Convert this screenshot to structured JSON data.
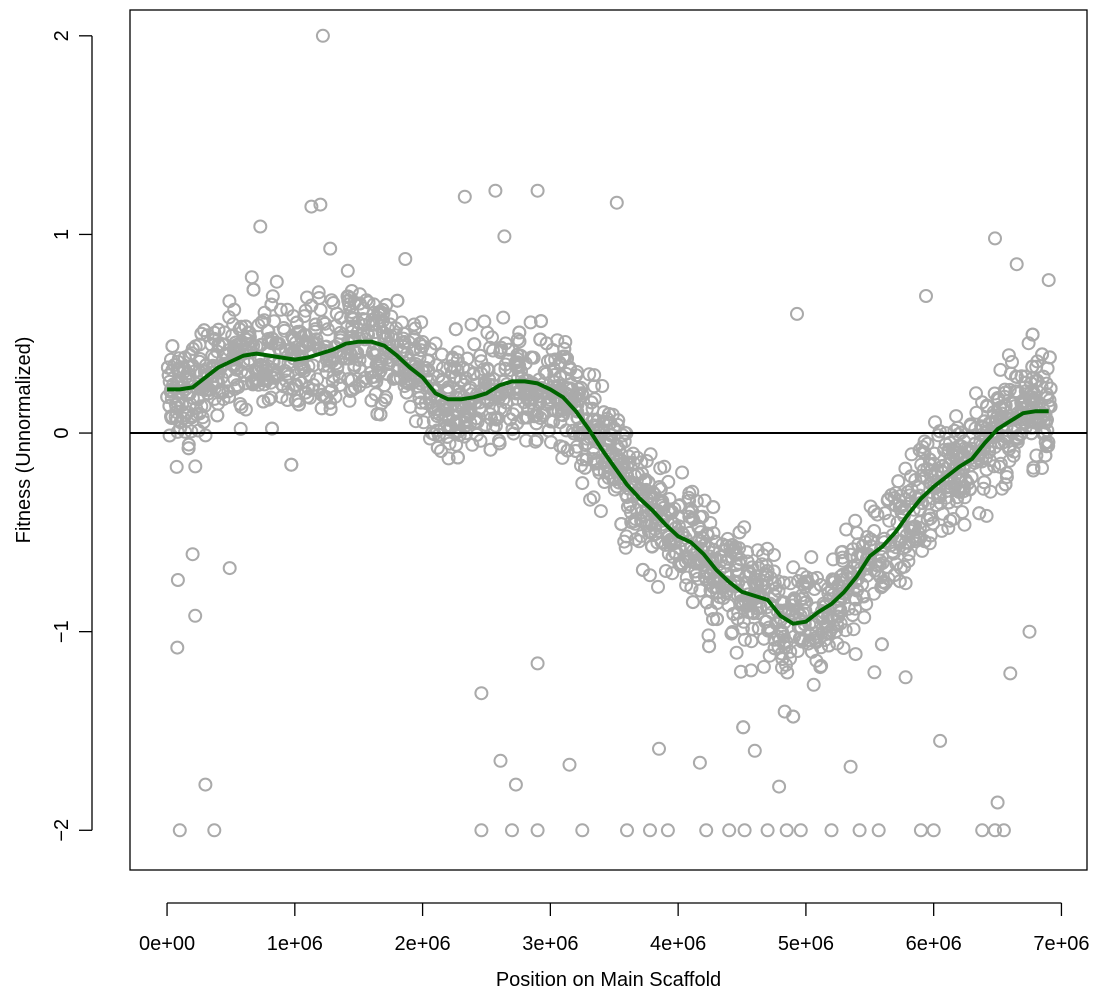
{
  "chart_data": {
    "type": "scatter",
    "title": "",
    "xlabel": "Position on Main Scaffold",
    "ylabel": "Fitness (Unnormalized)",
    "xlim": [
      -290000,
      7200000
    ],
    "ylim": [
      -2.2,
      2.13
    ],
    "x_ticks": [
      {
        "value": 0,
        "label": "0e+00"
      },
      {
        "value": 1000000,
        "label": "1e+06"
      },
      {
        "value": 2000000,
        "label": "2e+06"
      },
      {
        "value": 3000000,
        "label": "3e+06"
      },
      {
        "value": 4000000,
        "label": "4e+06"
      },
      {
        "value": 5000000,
        "label": "5e+06"
      },
      {
        "value": 6000000,
        "label": "6e+06"
      },
      {
        "value": 7000000,
        "label": "7e+06"
      }
    ],
    "y_ticks": [
      {
        "value": -2,
        "label": "−2"
      },
      {
        "value": -1,
        "label": "−1"
      },
      {
        "value": 0,
        "label": "0"
      },
      {
        "value": 1,
        "label": "1"
      },
      {
        "value": 2,
        "label": "2"
      }
    ],
    "reference_line_y": 0,
    "grid": false,
    "legend": "none",
    "colors": {
      "points": "#aaaaaa",
      "trend": "#006400",
      "axes": "#000000",
      "reference": "#000000"
    },
    "series": [
      {
        "type": "scatter",
        "marker": "open-circle",
        "points_total": "several thousand",
        "sample_points": [
          [
            1220000,
            2.0
          ],
          [
            2900000,
            1.22
          ],
          [
            2570000,
            1.22
          ],
          [
            3520000,
            1.16
          ],
          [
            2330000,
            1.19
          ],
          [
            1200000,
            1.15
          ],
          [
            1130000,
            1.14
          ],
          [
            730000,
            1.04
          ],
          [
            2640000,
            0.99
          ],
          [
            4930000,
            0.6
          ],
          [
            5940000,
            0.69
          ],
          [
            6480000,
            0.98
          ],
          [
            6650000,
            0.85
          ],
          [
            6900000,
            0.77
          ],
          [
            80000,
            -1.08
          ],
          [
            85000,
            -0.74
          ],
          [
            200000,
            -0.61
          ],
          [
            220000,
            -0.92
          ],
          [
            300000,
            -1.77
          ],
          [
            490000,
            -0.68
          ],
          [
            2460000,
            -1.31
          ],
          [
            2610000,
            -1.65
          ],
          [
            2730000,
            -1.77
          ],
          [
            3150000,
            -1.67
          ],
          [
            2900000,
            -1.16
          ],
          [
            3850000,
            -1.59
          ],
          [
            4170000,
            -1.66
          ],
          [
            4600000,
            -1.6
          ],
          [
            4790000,
            -1.78
          ],
          [
            5350000,
            -1.68
          ],
          [
            5780000,
            -1.23
          ],
          [
            6050000,
            -1.55
          ],
          [
            6500000,
            -1.86
          ],
          [
            6600000,
            -1.21
          ],
          [
            6750000,
            -1.0
          ],
          [
            100000,
            -2.0
          ],
          [
            370000,
            -2.0
          ],
          [
            2460000,
            -2.0
          ],
          [
            2700000,
            -2.0
          ],
          [
            2900000,
            -2.0
          ],
          [
            3250000,
            -2.0
          ],
          [
            3600000,
            -2.0
          ],
          [
            3780000,
            -2.0
          ],
          [
            3920000,
            -2.0
          ],
          [
            4220000,
            -2.0
          ],
          [
            4400000,
            -2.0
          ],
          [
            4520000,
            -2.0
          ],
          [
            4700000,
            -2.0
          ],
          [
            4850000,
            -2.0
          ],
          [
            4960000,
            -2.0
          ],
          [
            5200000,
            -2.0
          ],
          [
            5420000,
            -2.0
          ],
          [
            5570000,
            -2.0
          ],
          [
            5900000,
            -2.0
          ],
          [
            6000000,
            -2.0
          ],
          [
            6380000,
            -2.0
          ],
          [
            6480000,
            -2.0
          ],
          [
            6550000,
            -2.0
          ]
        ]
      },
      {
        "type": "line",
        "points": [
          [
            0,
            0.22
          ],
          [
            100000,
            0.22
          ],
          [
            200000,
            0.23
          ],
          [
            300000,
            0.28
          ],
          [
            400000,
            0.33
          ],
          [
            500000,
            0.36
          ],
          [
            600000,
            0.39
          ],
          [
            700000,
            0.4
          ],
          [
            800000,
            0.39
          ],
          [
            900000,
            0.38
          ],
          [
            1000000,
            0.37
          ],
          [
            1100000,
            0.38
          ],
          [
            1200000,
            0.4
          ],
          [
            1300000,
            0.42
          ],
          [
            1400000,
            0.45
          ],
          [
            1500000,
            0.46
          ],
          [
            1600000,
            0.46
          ],
          [
            1700000,
            0.44
          ],
          [
            1800000,
            0.39
          ],
          [
            1900000,
            0.33
          ],
          [
            2000000,
            0.28
          ],
          [
            2100000,
            0.2
          ],
          [
            2200000,
            0.17
          ],
          [
            2300000,
            0.17
          ],
          [
            2400000,
            0.18
          ],
          [
            2500000,
            0.2
          ],
          [
            2600000,
            0.24
          ],
          [
            2700000,
            0.26
          ],
          [
            2800000,
            0.26
          ],
          [
            2900000,
            0.25
          ],
          [
            3000000,
            0.22
          ],
          [
            3100000,
            0.18
          ],
          [
            3200000,
            0.11
          ],
          [
            3300000,
            0.02
          ],
          [
            3400000,
            -0.08
          ],
          [
            3500000,
            -0.17
          ],
          [
            3600000,
            -0.26
          ],
          [
            3700000,
            -0.33
          ],
          [
            3800000,
            -0.39
          ],
          [
            3900000,
            -0.46
          ],
          [
            4000000,
            -0.52
          ],
          [
            4100000,
            -0.55
          ],
          [
            4200000,
            -0.61
          ],
          [
            4300000,
            -0.69
          ],
          [
            4400000,
            -0.75
          ],
          [
            4500000,
            -0.8
          ],
          [
            4600000,
            -0.82
          ],
          [
            4700000,
            -0.84
          ],
          [
            4800000,
            -0.92
          ],
          [
            4900000,
            -0.96
          ],
          [
            5000000,
            -0.95
          ],
          [
            5100000,
            -0.9
          ],
          [
            5200000,
            -0.86
          ],
          [
            5300000,
            -0.8
          ],
          [
            5400000,
            -0.72
          ],
          [
            5500000,
            -0.62
          ],
          [
            5600000,
            -0.57
          ],
          [
            5700000,
            -0.5
          ],
          [
            5800000,
            -0.41
          ],
          [
            5900000,
            -0.33
          ],
          [
            6000000,
            -0.27
          ],
          [
            6100000,
            -0.22
          ],
          [
            6200000,
            -0.17
          ],
          [
            6300000,
            -0.13
          ],
          [
            6400000,
            -0.05
          ],
          [
            6500000,
            0.02
          ],
          [
            6600000,
            0.06
          ],
          [
            6700000,
            0.1
          ],
          [
            6800000,
            0.11
          ],
          [
            6900000,
            0.11
          ]
        ]
      }
    ]
  }
}
